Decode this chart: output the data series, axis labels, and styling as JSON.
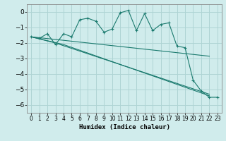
{
  "xlabel": "Humidex (Indice chaleur)",
  "background_color": "#d0ecec",
  "grid_color": "#aed4d4",
  "line_color": "#1a7a6e",
  "xlim": [
    -0.5,
    23.5
  ],
  "ylim": [
    -6.5,
    0.5
  ],
  "yticks": [
    0,
    -1,
    -2,
    -3,
    -4,
    -5,
    -6
  ],
  "xticks": [
    0,
    1,
    2,
    3,
    4,
    5,
    6,
    7,
    8,
    9,
    10,
    11,
    12,
    13,
    14,
    15,
    16,
    17,
    18,
    19,
    20,
    21,
    22,
    23
  ],
  "jagged_x": [
    0,
    1,
    2,
    3,
    4,
    5,
    6,
    7,
    8,
    9,
    10,
    11,
    12,
    13,
    14,
    15,
    16,
    17,
    18,
    19,
    20,
    21,
    22,
    23
  ],
  "jagged_y": [
    -1.6,
    -1.7,
    -1.4,
    -2.1,
    -1.4,
    -1.6,
    -0.5,
    -0.4,
    -0.6,
    -1.3,
    -1.1,
    -0.05,
    0.1,
    -1.2,
    -0.1,
    -1.2,
    -0.8,
    -0.7,
    -2.2,
    -2.3,
    -4.4,
    -5.1,
    -5.5,
    -5.5
  ],
  "upper_line_x": [
    0,
    22
  ],
  "upper_line_y": [
    -1.6,
    -2.85
  ],
  "lower_line1_x": [
    0,
    3,
    22
  ],
  "lower_line1_y": [
    -1.6,
    -2.0,
    -5.3
  ],
  "lower_line2_x": [
    0,
    4,
    22
  ],
  "lower_line2_y": [
    -1.6,
    -2.1,
    -5.4
  ]
}
